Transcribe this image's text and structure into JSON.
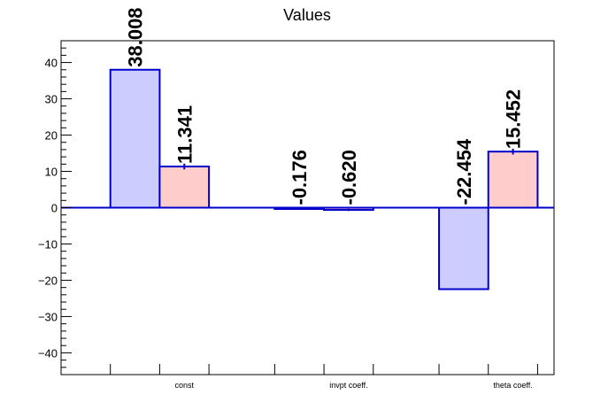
{
  "chart_data": {
    "type": "bar",
    "title": "Values",
    "xlabel": "",
    "ylabel": "",
    "categories": [
      "const",
      "invpt coeff.",
      "theta coeff."
    ],
    "ylim": [
      -46,
      46
    ],
    "yticks": [
      -40,
      -30,
      -20,
      -10,
      0,
      10,
      20,
      30,
      40
    ],
    "ytick_labels": [
      "−40",
      "−30",
      "−20",
      "−10",
      "0",
      "10",
      "20",
      "30",
      "40"
    ],
    "grid": false,
    "legend": "none",
    "series": [
      {
        "values": [
          38.008,
          -0.176,
          -22.454
        ],
        "labels": [
          "38.008",
          "-0.176",
          "-22.454"
        ],
        "errors": [
          0,
          0,
          0
        ],
        "fill": "#ccccff",
        "stroke": "#0000cc"
      },
      {
        "values": [
          11.341,
          -0.62,
          15.452
        ],
        "labels": [
          "11.341",
          "-0.620",
          "15.452"
        ],
        "errors": [
          0.8,
          0.3,
          0.8
        ],
        "fill": "#ffcccc",
        "stroke": "#0000cc"
      }
    ]
  }
}
